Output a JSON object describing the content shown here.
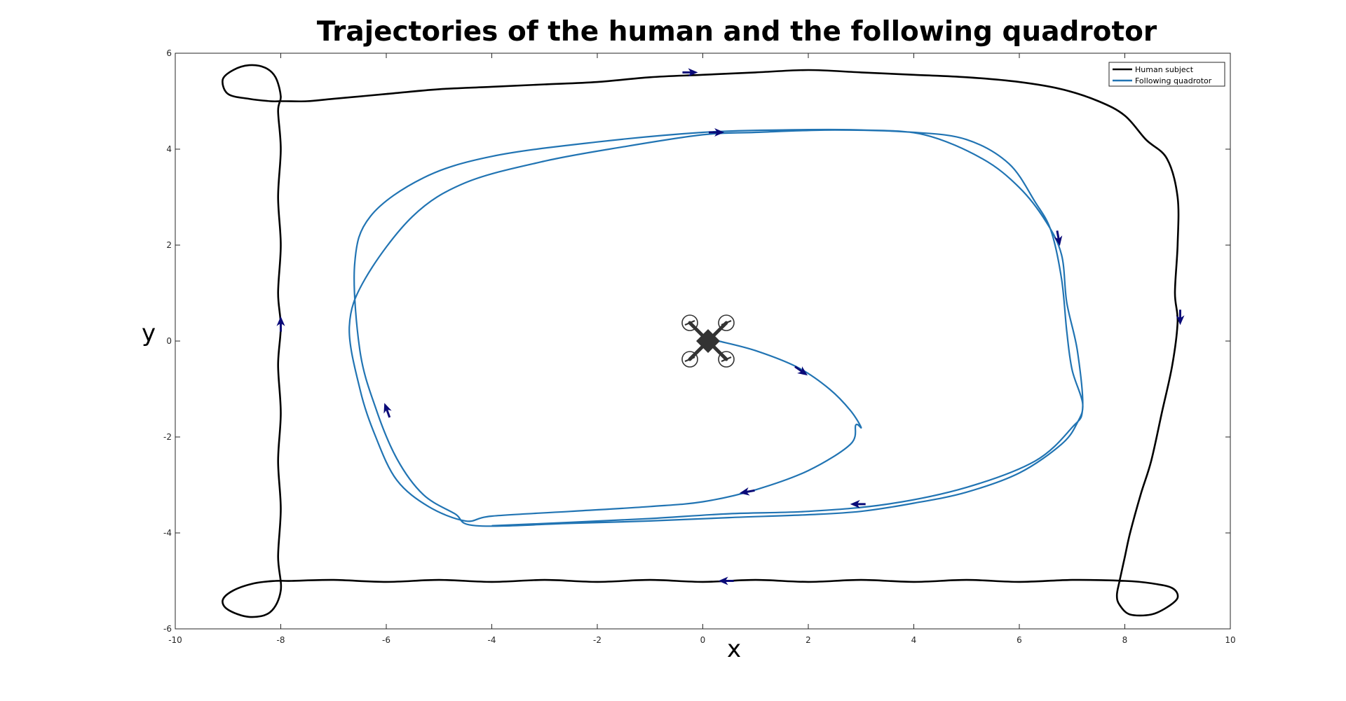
{
  "chart_data": {
    "type": "line",
    "title": "Trajectories of the human and the following quadrotor",
    "xlabel": "x",
    "ylabel": "y",
    "xlim": [
      -10,
      10
    ],
    "ylim": [
      -6,
      6
    ],
    "xticks": [
      -10,
      -8,
      -6,
      -4,
      -2,
      0,
      2,
      4,
      6,
      8,
      10
    ],
    "yticks": [
      -6,
      -4,
      -2,
      0,
      2,
      4,
      6
    ],
    "grid": false,
    "legend_position": "top-right",
    "series": [
      {
        "name": "Human subject",
        "color": "#000000",
        "x": [
          -8.0,
          -7.9,
          -7.5,
          -7.0,
          -6.0,
          -5.0,
          -4.0,
          -3.0,
          -2.0,
          -1.0,
          0.0,
          1.0,
          2.0,
          3.0,
          4.0,
          5.0,
          6.0,
          6.8,
          7.5,
          8.0,
          8.4,
          8.8,
          9.0,
          9.0,
          8.95,
          9.0,
          8.9,
          8.7,
          8.5,
          8.3,
          8.1,
          8.0,
          7.9,
          7.85,
          7.9,
          8.1,
          8.5,
          8.8,
          9.0,
          8.9,
          8.5,
          8.0,
          7.0,
          6.0,
          5.0,
          4.0,
          3.0,
          2.0,
          1.0,
          0.0,
          -1.0,
          -2.0,
          -3.0,
          -4.0,
          -5.0,
          -6.0,
          -7.0,
          -7.8,
          -8.1,
          -8.5,
          -8.9,
          -9.1,
          -9.0,
          -8.6,
          -8.2,
          -8.0,
          -8.05,
          -8.0,
          -8.05,
          -8.0,
          -8.05,
          -8.0,
          -8.05,
          -8.0,
          -8.05,
          -8.0,
          -8.05,
          -8.0,
          -8.1,
          -8.3,
          -8.6,
          -8.9,
          -9.1,
          -9.0,
          -8.6,
          -8.2,
          -8.0
        ],
        "y": [
          5.0,
          5.0,
          5.0,
          5.05,
          5.15,
          5.25,
          5.3,
          5.35,
          5.4,
          5.5,
          5.55,
          5.6,
          5.65,
          5.6,
          5.55,
          5.5,
          5.4,
          5.25,
          5.0,
          4.7,
          4.2,
          3.8,
          3.0,
          2.0,
          1.0,
          0.4,
          -0.5,
          -1.5,
          -2.5,
          -3.2,
          -4.0,
          -4.5,
          -5.0,
          -5.3,
          -5.5,
          -5.7,
          -5.7,
          -5.55,
          -5.35,
          -5.15,
          -5.05,
          -5.0,
          -4.98,
          -5.02,
          -4.98,
          -5.02,
          -4.98,
          -5.02,
          -4.98,
          -5.02,
          -4.98,
          -5.02,
          -4.98,
          -5.02,
          -4.98,
          -5.02,
          -4.98,
          -5.0,
          -5.0,
          -5.05,
          -5.2,
          -5.4,
          -5.6,
          -5.75,
          -5.65,
          -5.2,
          -4.5,
          -3.5,
          -2.5,
          -1.5,
          -0.5,
          0.3,
          1.0,
          2.0,
          3.0,
          4.0,
          4.8,
          5.1,
          5.5,
          5.7,
          5.75,
          5.65,
          5.45,
          5.15,
          5.05,
          5.0,
          5.0
        ]
      },
      {
        "name": "Following quadrotor",
        "color": "#2174B3",
        "x": [
          0.3,
          1.0,
          1.8,
          2.4,
          2.8,
          3.0,
          2.9,
          2.8,
          2.0,
          1.0,
          0.0,
          -1.0,
          -2.5,
          -4.0,
          -4.5,
          -5.2,
          -5.8,
          -6.2,
          -6.5,
          -6.7,
          -6.4,
          -5.5,
          -4.5,
          -3.0,
          -1.5,
          0.0,
          1.0,
          2.5,
          4.0,
          5.0,
          5.8,
          6.3,
          6.6,
          6.8,
          6.9,
          7.0,
          7.2,
          7.1,
          6.8,
          6.0,
          5.0,
          4.0,
          3.0,
          2.0,
          0.5,
          -1.0,
          -2.5,
          -4.3,
          -4.7,
          -5.3,
          -5.8,
          -6.2,
          -6.5,
          -6.6,
          -6.3,
          -5.3,
          -4.0,
          -2.0,
          0.0,
          1.5,
          3.0,
          4.2,
          5.3,
          6.0,
          6.5,
          6.8,
          6.9,
          7.1,
          7.2,
          7.0,
          6.3,
          5.0,
          3.5,
          2.0,
          0.5,
          -1.0,
          -2.5,
          -4.0
        ],
        "y": [
          0.0,
          -0.2,
          -0.55,
          -1.0,
          -1.45,
          -1.8,
          -1.75,
          -2.15,
          -2.7,
          -3.1,
          -3.35,
          -3.45,
          -3.55,
          -3.65,
          -3.75,
          -3.45,
          -2.9,
          -2.0,
          -1.0,
          0.3,
          1.3,
          2.6,
          3.3,
          3.75,
          4.05,
          4.3,
          4.35,
          4.4,
          4.35,
          4.2,
          3.7,
          2.9,
          2.3,
          1.3,
          0.2,
          -0.6,
          -1.3,
          -1.7,
          -2.15,
          -2.75,
          -3.15,
          -3.38,
          -3.55,
          -3.62,
          -3.68,
          -3.75,
          -3.8,
          -3.85,
          -3.6,
          -3.2,
          -2.45,
          -1.4,
          -0.2,
          1.6,
          2.6,
          3.4,
          3.85,
          4.15,
          4.35,
          4.4,
          4.4,
          4.3,
          3.8,
          3.2,
          2.5,
          1.8,
          0.8,
          -0.2,
          -1.4,
          -1.8,
          -2.5,
          -3.05,
          -3.4,
          -3.55,
          -3.6,
          -3.7,
          -3.78,
          -3.85
        ]
      }
    ],
    "direction_markers": [
      {
        "series": "Human subject",
        "x": -0.2,
        "y": 5.6,
        "angle_deg": 0
      },
      {
        "series": "Human subject",
        "x": 9.05,
        "y": 0.45,
        "angle_deg": -90
      },
      {
        "series": "Human subject",
        "x": 0.4,
        "y": -5.0,
        "angle_deg": 180
      },
      {
        "series": "Human subject",
        "x": -8.0,
        "y": 0.4,
        "angle_deg": 90
      },
      {
        "series": "Following quadrotor",
        "x": 0.3,
        "y": 4.35,
        "angle_deg": 0
      },
      {
        "series": "Following quadrotor",
        "x": 6.75,
        "y": 2.1,
        "angle_deg": -80
      },
      {
        "series": "Following quadrotor",
        "x": 2.9,
        "y": -3.4,
        "angle_deg": 180
      },
      {
        "series": "Following quadrotor",
        "x": -6.0,
        "y": -1.4,
        "angle_deg": 110
      },
      {
        "series": "Following quadrotor",
        "x": 1.9,
        "y": -0.65,
        "angle_deg": -35
      },
      {
        "series": "Following quadrotor",
        "x": 0.8,
        "y": -3.15,
        "angle_deg": 190
      }
    ],
    "annotations": [
      {
        "type": "quadrotor-icon",
        "x": 0.1,
        "y": 0.0
      }
    ],
    "marker_color": "#0A0A78"
  }
}
